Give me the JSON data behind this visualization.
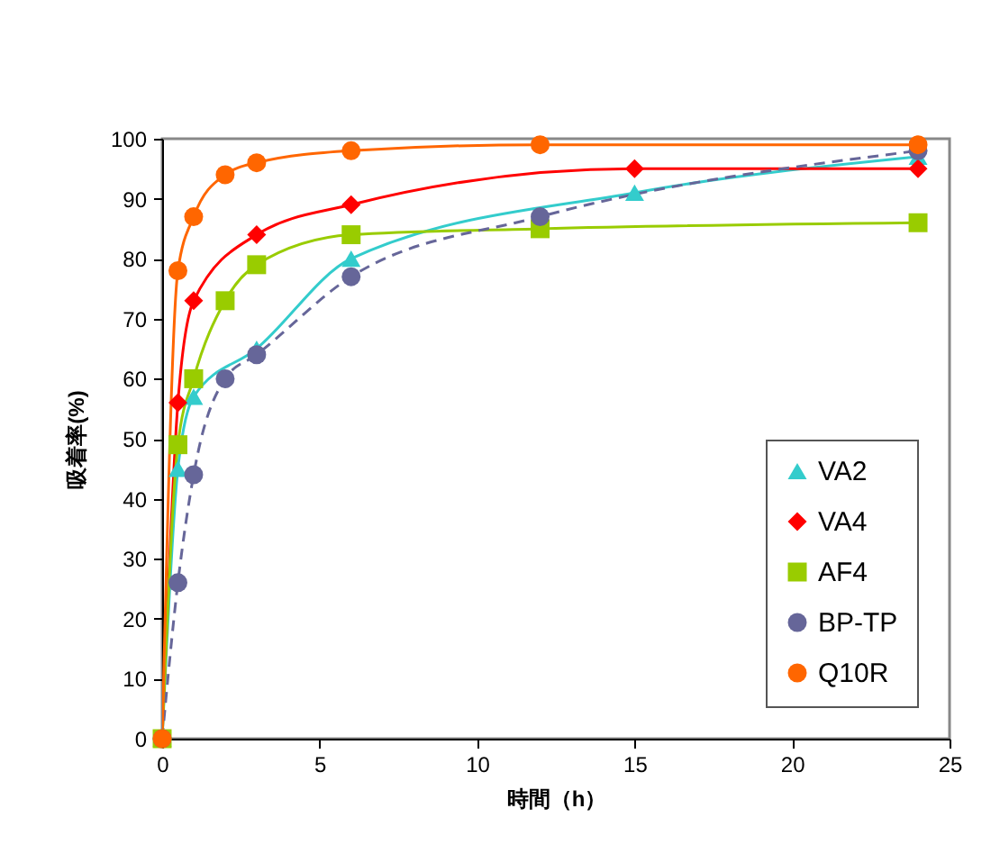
{
  "chart_data": {
    "type": "line",
    "xlabel": "時間（h）",
    "ylabel": "吸着率(%)",
    "xlim": [
      0,
      25
    ],
    "xticks": [
      0,
      5,
      10,
      15,
      20,
      25
    ],
    "ylim": [
      0,
      100
    ],
    "yticks": [
      0,
      10,
      20,
      30,
      40,
      50,
      60,
      70,
      80,
      90,
      100
    ],
    "grid": false,
    "legend": "bottom right",
    "series": [
      {
        "name": "VA2",
        "color": "#33cccc",
        "marker": "triangle",
        "line_style": "solid",
        "x": [
          0,
          0.5,
          1,
          3,
          6,
          15,
          24
        ],
        "values": [
          0,
          45,
          57,
          65,
          80,
          91,
          97
        ]
      },
      {
        "name": "VA4",
        "color": "#ff0000",
        "marker": "diamond",
        "line_style": "solid",
        "x": [
          0,
          0.5,
          1,
          3,
          6,
          15,
          24
        ],
        "values": [
          0,
          56,
          73,
          84,
          89,
          95,
          95
        ]
      },
      {
        "name": "AF4",
        "color": "#99cc00",
        "marker": "square",
        "line_style": "solid",
        "x": [
          0,
          0.5,
          1,
          2,
          3,
          6,
          12,
          24
        ],
        "values": [
          0,
          49,
          60,
          73,
          79,
          84,
          85,
          86
        ]
      },
      {
        "name": "BP-TP",
        "color": "#666699",
        "marker": "circle",
        "line_style": "dashed",
        "x": [
          0,
          0.5,
          1,
          2,
          3,
          6,
          12,
          24
        ],
        "values": [
          0,
          26,
          44,
          60,
          64,
          77,
          87,
          98
        ]
      },
      {
        "name": "Q10R",
        "color": "#ff6600",
        "marker": "circle",
        "line_style": "solid",
        "x": [
          0,
          0.5,
          1,
          2,
          3,
          6,
          12,
          24
        ],
        "values": [
          0,
          78,
          87,
          94,
          96,
          98,
          99,
          99
        ]
      }
    ]
  }
}
